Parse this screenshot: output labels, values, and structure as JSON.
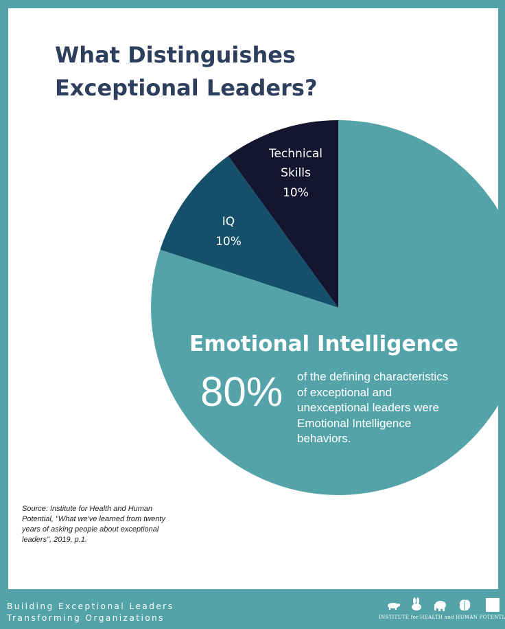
{
  "title_lines": [
    "What Distinguishes",
    "Exceptional Leaders?"
  ],
  "chart_data": {
    "type": "pie",
    "slices": [
      {
        "label": "Emotional Intelligence",
        "value": 80,
        "display": "80%",
        "color": "#53a3a8"
      },
      {
        "label": "IQ",
        "value": 10,
        "display": "10%",
        "color": "#15506a"
      },
      {
        "label": "Technical Skills",
        "value": 10,
        "display": "10%",
        "color": "#151530"
      }
    ],
    "labels": {
      "technical_lines": [
        "Technical",
        "Skills",
        "10%"
      ],
      "iq_lines": [
        "IQ",
        "10%"
      ],
      "ei_title": "Emotional Intelligence",
      "ei_percent": "80%",
      "ei_description_lines": [
        "of the defining characteristics",
        "of exceptional and",
        "unexceptional leaders were",
        "Emotional Intelligence",
        "behaviors."
      ]
    }
  },
  "source_lines": [
    "Source: Institute for Health and Human",
    "Potential, \"What we've learned from twenty",
    "years of asking people about exceptional",
    "leaders\", 2019, p.1."
  ],
  "footer": {
    "tagline_lines": [
      "Building Exceptional Leaders",
      "Transforming Organizations"
    ],
    "logo_text": "INSTITUTE for HEALTH and HUMAN POTENTIAL",
    "logo_icons": [
      "turtle-icon",
      "hare-icon",
      "elephant-icon",
      "brain-icon",
      "square-icon"
    ]
  },
  "colors": {
    "frame": "#53a3a8",
    "title": "#2e3f5e"
  }
}
